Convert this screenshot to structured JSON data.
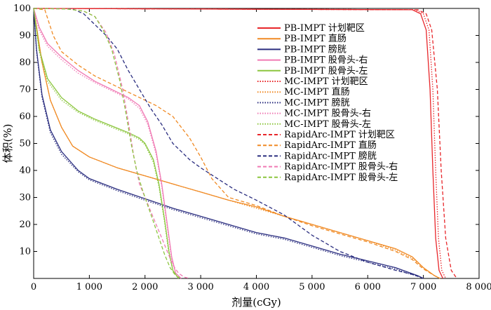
{
  "chart_data": {
    "type": "line",
    "xlabel": "剂量(cGy)",
    "ylabel": "体积(%)",
    "xlim": [
      0,
      8000
    ],
    "ylim": [
      0,
      100
    ],
    "x_ticks": [
      0,
      1000,
      2000,
      3000,
      4000,
      5000,
      6000,
      7000,
      8000
    ],
    "x_tick_labels": [
      "0",
      "1 000",
      "2 000",
      "3 000",
      "4 000",
      "5 000",
      "6 000",
      "7 000",
      "8 000"
    ],
    "y_ticks": [
      10,
      20,
      30,
      40,
      50,
      60,
      70,
      80,
      90,
      100
    ],
    "y_tick_labels": [
      "10",
      "20",
      "30",
      "40",
      "50",
      "60",
      "70",
      "80",
      "90",
      "100"
    ],
    "grid": false,
    "legend_position": "top-right",
    "colors": {
      "target": "#e8262a",
      "rectum": "#f08a24",
      "bladder": "#2a2d7f",
      "femur_right": "#f07ab4",
      "femur_left": "#8cc63f"
    },
    "series": [
      {
        "name": "PB-IMPT 计划靶区",
        "color": "#e8262a",
        "style": "solid",
        "points": [
          [
            0,
            100
          ],
          [
            6800,
            99.5
          ],
          [
            6950,
            98
          ],
          [
            7050,
            92
          ],
          [
            7120,
            70
          ],
          [
            7170,
            40
          ],
          [
            7220,
            15
          ],
          [
            7280,
            3
          ],
          [
            7350,
            0
          ]
        ]
      },
      {
        "name": "PB-IMPT 直肠",
        "color": "#f08a24",
        "style": "solid",
        "points": [
          [
            0,
            100
          ],
          [
            60,
            92
          ],
          [
            150,
            80
          ],
          [
            300,
            66
          ],
          [
            500,
            56
          ],
          [
            700,
            49
          ],
          [
            1000,
            45
          ],
          [
            1500,
            41
          ],
          [
            2000,
            38
          ],
          [
            2500,
            35
          ],
          [
            3000,
            32
          ],
          [
            3500,
            29
          ],
          [
            4000,
            26.5
          ],
          [
            4500,
            23
          ],
          [
            5000,
            20
          ],
          [
            5500,
            17
          ],
          [
            6000,
            14
          ],
          [
            6500,
            11
          ],
          [
            6800,
            8
          ],
          [
            7000,
            4
          ],
          [
            7200,
            1
          ],
          [
            7300,
            0
          ]
        ]
      },
      {
        "name": "PB-IMPT 膀胱",
        "color": "#2a2d7f",
        "style": "solid",
        "points": [
          [
            0,
            100
          ],
          [
            50,
            85
          ],
          [
            150,
            68
          ],
          [
            300,
            55
          ],
          [
            500,
            47
          ],
          [
            800,
            40
          ],
          [
            1000,
            37
          ],
          [
            1500,
            33
          ],
          [
            2000,
            29.5
          ],
          [
            2500,
            26
          ],
          [
            3000,
            23
          ],
          [
            3500,
            20
          ],
          [
            4000,
            17
          ],
          [
            4500,
            15
          ],
          [
            5000,
            12
          ],
          [
            5500,
            9
          ],
          [
            6000,
            6.5
          ],
          [
            6500,
            4
          ],
          [
            6700,
            2.5
          ],
          [
            6900,
            1
          ],
          [
            7000,
            0
          ]
        ]
      },
      {
        "name": "PB-IMPT 股骨头-右",
        "color": "#f07ab4",
        "style": "solid",
        "points": [
          [
            0,
            100
          ],
          [
            100,
            93
          ],
          [
            250,
            87
          ],
          [
            500,
            82
          ],
          [
            800,
            77
          ],
          [
            1100,
            73
          ],
          [
            1400,
            70
          ],
          [
            1700,
            67
          ],
          [
            1900,
            64
          ],
          [
            2050,
            58
          ],
          [
            2200,
            47
          ],
          [
            2300,
            35
          ],
          [
            2400,
            20
          ],
          [
            2480,
            8
          ],
          [
            2550,
            2
          ],
          [
            2650,
            0
          ]
        ]
      },
      {
        "name": "PB-IMPT 股骨头-左",
        "color": "#8cc63f",
        "style": "solid",
        "points": [
          [
            0,
            100
          ],
          [
            100,
            85
          ],
          [
            250,
            74
          ],
          [
            500,
            67
          ],
          [
            800,
            62
          ],
          [
            1100,
            59
          ],
          [
            1400,
            56.5
          ],
          [
            1700,
            54
          ],
          [
            1900,
            52
          ],
          [
            2000,
            50
          ],
          [
            2150,
            44
          ],
          [
            2250,
            35
          ],
          [
            2350,
            22
          ],
          [
            2430,
            10
          ],
          [
            2500,
            3
          ],
          [
            2600,
            0
          ]
        ]
      },
      {
        "name": "MC-IMPT 计划靶区",
        "color": "#e8262a",
        "style": "dotted",
        "points": [
          [
            0,
            100
          ],
          [
            6850,
            99.5
          ],
          [
            7000,
            98
          ],
          [
            7100,
            92
          ],
          [
            7170,
            70
          ],
          [
            7220,
            40
          ],
          [
            7270,
            15
          ],
          [
            7330,
            3
          ],
          [
            7400,
            0
          ]
        ]
      },
      {
        "name": "MC-IMPT 直肠",
        "color": "#f08a24",
        "style": "dotted",
        "points": [
          [
            0,
            100
          ],
          [
            60,
            92
          ],
          [
            150,
            80
          ],
          [
            300,
            66
          ],
          [
            500,
            56
          ],
          [
            700,
            49
          ],
          [
            1000,
            45
          ],
          [
            1500,
            41
          ],
          [
            2000,
            38
          ],
          [
            2500,
            35
          ],
          [
            3000,
            32
          ],
          [
            3500,
            29
          ],
          [
            4000,
            26
          ],
          [
            4500,
            23
          ],
          [
            5000,
            20
          ],
          [
            5500,
            17
          ],
          [
            6000,
            14
          ],
          [
            6500,
            10.5
          ],
          [
            6800,
            7.5
          ],
          [
            7000,
            4
          ],
          [
            7200,
            1
          ],
          [
            7300,
            0
          ]
        ]
      },
      {
        "name": "MC-IMPT 膀胱",
        "color": "#2a2d7f",
        "style": "dotted",
        "points": [
          [
            0,
            100
          ],
          [
            50,
            84
          ],
          [
            150,
            67
          ],
          [
            300,
            54
          ],
          [
            500,
            46
          ],
          [
            800,
            39.5
          ],
          [
            1000,
            36.5
          ],
          [
            1500,
            32.5
          ],
          [
            2000,
            29
          ],
          [
            2500,
            25.5
          ],
          [
            3000,
            22.5
          ],
          [
            3500,
            19.5
          ],
          [
            4000,
            16.5
          ],
          [
            4500,
            14.5
          ],
          [
            5000,
            11.5
          ],
          [
            5500,
            8.5
          ],
          [
            6000,
            6
          ],
          [
            6500,
            3.5
          ],
          [
            6700,
            2
          ],
          [
            6900,
            0.8
          ],
          [
            7000,
            0
          ]
        ]
      },
      {
        "name": "MC-IMPT 股骨头-右",
        "color": "#f07ab4",
        "style": "dotted",
        "points": [
          [
            0,
            100
          ],
          [
            100,
            92
          ],
          [
            250,
            86
          ],
          [
            500,
            81
          ],
          [
            800,
            76
          ],
          [
            1100,
            72.5
          ],
          [
            1400,
            69.5
          ],
          [
            1700,
            66.5
          ],
          [
            1900,
            63
          ],
          [
            2050,
            57
          ],
          [
            2200,
            46
          ],
          [
            2300,
            34
          ],
          [
            2400,
            19
          ],
          [
            2480,
            7
          ],
          [
            2550,
            2
          ],
          [
            2650,
            0
          ]
        ]
      },
      {
        "name": "MC-IMPT 股骨头-左",
        "color": "#8cc63f",
        "style": "dotted",
        "points": [
          [
            0,
            100
          ],
          [
            100,
            84
          ],
          [
            250,
            73
          ],
          [
            500,
            66
          ],
          [
            800,
            61.5
          ],
          [
            1100,
            58.5
          ],
          [
            1400,
            56
          ],
          [
            1700,
            53.5
          ],
          [
            1900,
            51.5
          ],
          [
            2000,
            49.5
          ],
          [
            2150,
            43
          ],
          [
            2250,
            34
          ],
          [
            2350,
            21
          ],
          [
            2430,
            9
          ],
          [
            2500,
            3
          ],
          [
            2600,
            0
          ]
        ]
      },
      {
        "name": "RapidArc-IMPT 计划靶区",
        "color": "#e8262a",
        "style": "dashed",
        "points": [
          [
            0,
            100
          ],
          [
            6900,
            99.5
          ],
          [
            7050,
            98
          ],
          [
            7150,
            92
          ],
          [
            7250,
            70
          ],
          [
            7320,
            40
          ],
          [
            7400,
            15
          ],
          [
            7500,
            3
          ],
          [
            7600,
            0
          ]
        ]
      },
      {
        "name": "RapidArc-IMPT 直肠",
        "color": "#f08a24",
        "style": "dashed",
        "points": [
          [
            0,
            100
          ],
          [
            200,
            99.5
          ],
          [
            350,
            90
          ],
          [
            500,
            84
          ],
          [
            800,
            79
          ],
          [
            1100,
            75
          ],
          [
            1400,
            72
          ],
          [
            1700,
            69
          ],
          [
            2000,
            66
          ],
          [
            2200,
            64
          ],
          [
            2500,
            60
          ],
          [
            2800,
            52
          ],
          [
            3000,
            45
          ],
          [
            3200,
            37
          ],
          [
            3500,
            30
          ],
          [
            4000,
            27
          ],
          [
            4500,
            23
          ],
          [
            5000,
            19.5
          ],
          [
            5500,
            16.5
          ],
          [
            6000,
            13.5
          ],
          [
            6500,
            10
          ],
          [
            6800,
            7
          ],
          [
            7000,
            3.5
          ],
          [
            7200,
            1
          ],
          [
            7300,
            0
          ]
        ]
      },
      {
        "name": "RapidArc-IMPT 膀胱",
        "color": "#2a2d7f",
        "style": "dashed",
        "points": [
          [
            0,
            100
          ],
          [
            700,
            99.8
          ],
          [
            900,
            98
          ],
          [
            1100,
            94
          ],
          [
            1300,
            90
          ],
          [
            1500,
            85
          ],
          [
            1700,
            77
          ],
          [
            1900,
            70
          ],
          [
            2100,
            63
          ],
          [
            2300,
            57
          ],
          [
            2500,
            50
          ],
          [
            2800,
            44
          ],
          [
            3000,
            41
          ],
          [
            3300,
            37
          ],
          [
            3600,
            33
          ],
          [
            4000,
            29
          ],
          [
            4500,
            23.5
          ],
          [
            5000,
            16
          ],
          [
            5500,
            10
          ],
          [
            6000,
            6
          ],
          [
            6500,
            3
          ],
          [
            6800,
            1.5
          ],
          [
            7000,
            0
          ]
        ]
      },
      {
        "name": "RapidArc-IMPT 股骨头-右",
        "color": "#f07ab4",
        "style": "dashed",
        "points": [
          [
            0,
            100
          ],
          [
            600,
            99.8
          ],
          [
            900,
            99
          ],
          [
            1100,
            97
          ],
          [
            1300,
            91
          ],
          [
            1450,
            83
          ],
          [
            1600,
            70
          ],
          [
            1700,
            58
          ],
          [
            1800,
            45
          ],
          [
            1900,
            35
          ],
          [
            2000,
            30
          ],
          [
            2100,
            25
          ],
          [
            2200,
            20
          ],
          [
            2300,
            15
          ],
          [
            2400,
            10
          ],
          [
            2500,
            5
          ],
          [
            2600,
            2
          ],
          [
            2700,
            0.5
          ],
          [
            2800,
            0
          ]
        ]
      },
      {
        "name": "RapidArc-IMPT 股骨头-左",
        "color": "#8cc63f",
        "style": "dashed",
        "points": [
          [
            0,
            100
          ],
          [
            600,
            99.8
          ],
          [
            900,
            99
          ],
          [
            1100,
            97
          ],
          [
            1250,
            92
          ],
          [
            1400,
            85
          ],
          [
            1550,
            73
          ],
          [
            1650,
            62
          ],
          [
            1750,
            50
          ],
          [
            1850,
            40
          ],
          [
            1950,
            33
          ],
          [
            2050,
            27
          ],
          [
            2150,
            21
          ],
          [
            2250,
            15
          ],
          [
            2350,
            9
          ],
          [
            2450,
            4
          ],
          [
            2550,
            1
          ],
          [
            2650,
            0
          ]
        ]
      }
    ]
  }
}
